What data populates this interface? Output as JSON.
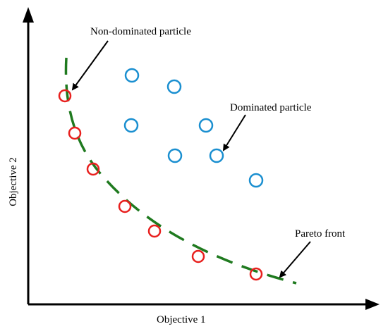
{
  "labels": {
    "non_dominated": "Non-dominated particle",
    "dominated": "Dominated particle",
    "pareto_front": "Pareto front",
    "x_axis": "Objective 1",
    "y_axis": "Objective 2"
  },
  "colors": {
    "axis": "#000000",
    "front": "#1f7a1f",
    "non_dominated_marker": "#e8201e",
    "dominated_marker": "#1a8fd0"
  },
  "icons": {
    "non_dominated_marker": "red-circle-icon",
    "dominated_marker": "blue-circle-icon"
  }
}
